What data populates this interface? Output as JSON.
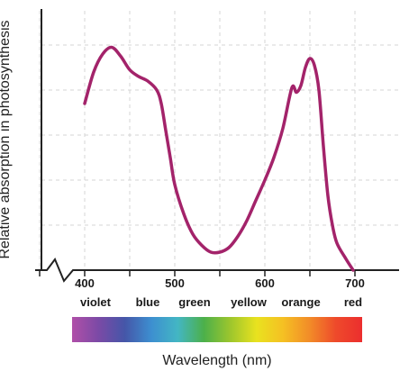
{
  "chart_data": {
    "type": "line",
    "title": "",
    "xlabel": "Wavelength (nm)",
    "ylabel": "Relative absorption in photosynthesis",
    "xlim": [
      350,
      750
    ],
    "ylim": [
      0,
      1
    ],
    "x_ticks": [
      400,
      500,
      600,
      700
    ],
    "grid": true,
    "color_bands": [
      {
        "label": "violet",
        "x": 412
      },
      {
        "label": "blue",
        "x": 470
      },
      {
        "label": "green",
        "x": 522
      },
      {
        "label": "yellow",
        "x": 582
      },
      {
        "label": "orange",
        "x": 640
      },
      {
        "label": "red",
        "x": 698
      }
    ],
    "series": [
      {
        "color": "#a3236a",
        "x": [
          400,
          410,
          420,
          430,
          440,
          450,
          460,
          470,
          480,
          485,
          490,
          495,
          500,
          510,
          520,
          530,
          540,
          550,
          560,
          570,
          580,
          590,
          600,
          610,
          620,
          630,
          635,
          640,
          645,
          650,
          655,
          660,
          665,
          670,
          675,
          680,
          690,
          698
        ],
        "y": [
          0.74,
          0.88,
          0.96,
          0.99,
          0.95,
          0.89,
          0.86,
          0.84,
          0.8,
          0.74,
          0.62,
          0.5,
          0.38,
          0.25,
          0.16,
          0.11,
          0.08,
          0.08,
          0.1,
          0.15,
          0.22,
          0.31,
          0.4,
          0.5,
          0.63,
          0.81,
          0.79,
          0.82,
          0.9,
          0.94,
          0.91,
          0.8,
          0.55,
          0.33,
          0.2,
          0.12,
          0.05,
          0.0
        ]
      }
    ]
  },
  "spectrum_colors": [
    "#b04fa8",
    "#7b4aa6",
    "#4556a8",
    "#3d8fd0",
    "#43b6c4",
    "#4cb04a",
    "#9dc62d",
    "#e9e21f",
    "#f5c023",
    "#f28c28",
    "#ee4a2b",
    "#ec2e2e"
  ],
  "line_color": "#a3236a"
}
